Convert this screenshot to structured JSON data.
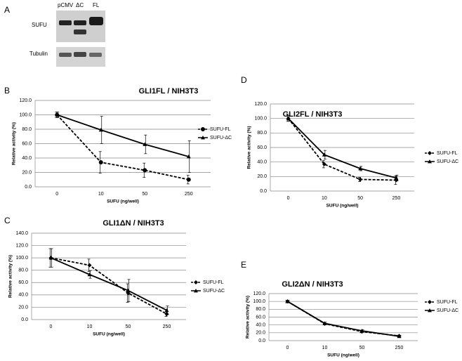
{
  "blot": {
    "panel": "A",
    "lanes": [
      "pCMV",
      "ΔC",
      "FL"
    ],
    "rows": [
      "SUFU",
      "Tubulin"
    ]
  },
  "chart_data": [
    {
      "type": "line",
      "panel": "B",
      "title": "GLI1FL / NIH3T3",
      "x_label": "SUFU (ng/well)",
      "y_label": "Relative activity (%)",
      "categories": [
        "0",
        "10",
        "50",
        "250"
      ],
      "ylim": [
        0,
        120
      ],
      "yticks": [
        {
          "value": 0,
          "label": "0.0"
        },
        {
          "value": 20,
          "label": "20.0"
        },
        {
          "value": 40,
          "label": "40.0"
        },
        {
          "value": 60,
          "label": "60.0"
        },
        {
          "value": 80,
          "label": "80.0"
        },
        {
          "value": 100,
          "label": "100.0"
        },
        {
          "value": 120,
          "label": "120.0"
        }
      ],
      "grid": true,
      "legend": "right",
      "series": [
        {
          "name": "SUFU-FL",
          "color": "#000000",
          "dash": true,
          "marker": "circle",
          "values": [
            100,
            34,
            23,
            10
          ],
          "errors": [
            4,
            15,
            10,
            6
          ]
        },
        {
          "name": "SUFU-ΔC",
          "color": "#000000",
          "dash": false,
          "marker": "triangle",
          "values": [
            100,
            79,
            59,
            42
          ],
          "errors": [
            4,
            19,
            13,
            22
          ]
        }
      ]
    },
    {
      "type": "line",
      "panel": "D",
      "title": "GLI2FL / NIH3T3",
      "x_label": "SUFU (ng/well)",
      "y_label": "Relative activity (%)",
      "categories": [
        "0",
        "10",
        "50",
        "250"
      ],
      "ylim": [
        0,
        120
      ],
      "yticks": [
        {
          "value": 0,
          "label": "0.0"
        },
        {
          "value": 20,
          "label": "20.0"
        },
        {
          "value": 40,
          "label": "40.0"
        },
        {
          "value": 60,
          "label": "60.0"
        },
        {
          "value": 80,
          "label": "80.0"
        },
        {
          "value": 100,
          "label": "100.0"
        },
        {
          "value": 120,
          "label": "120.0"
        }
      ],
      "grid": true,
      "legend": "right",
      "series": [
        {
          "name": "SUFU-FL",
          "color": "#000000",
          "dash": true,
          "marker": "diamond",
          "values": [
            100,
            37,
            16,
            15
          ],
          "errors": [
            4,
            5,
            3,
            6
          ]
        },
        {
          "name": "SUFU-ΔC",
          "color": "#000000",
          "dash": false,
          "marker": "triangle",
          "values": [
            100,
            50,
            31,
            18
          ],
          "errors": [
            4,
            6,
            3,
            4
          ]
        }
      ]
    },
    {
      "type": "line",
      "panel": "C",
      "title": "GLI1ΔN / NIH3T3",
      "x_label": "SUFU (ng/well)",
      "y_label": "Relative activity (%)",
      "categories": [
        "0",
        "10",
        "50",
        "250"
      ],
      "ylim": [
        0,
        140
      ],
      "yticks": [
        {
          "value": 0,
          "label": "0.0"
        },
        {
          "value": 20,
          "label": "20.0"
        },
        {
          "value": 40,
          "label": "40.0"
        },
        {
          "value": 60,
          "label": "60.0"
        },
        {
          "value": 80,
          "label": "80.0"
        },
        {
          "value": 100,
          "label": "100.0"
        },
        {
          "value": 120,
          "label": "120.0"
        },
        {
          "value": 140,
          "label": "140.0"
        }
      ],
      "grid": true,
      "legend": "right",
      "series": [
        {
          "name": "SUFU-FL",
          "color": "#000000",
          "dash": true,
          "marker": "diamond",
          "values": [
            100,
            88,
            43,
            9
          ],
          "errors": [
            15,
            10,
            15,
            4
          ]
        },
        {
          "name": "SUFU-ΔC",
          "color": "#000000",
          "dash": false,
          "marker": "triangle",
          "values": [
            100,
            73,
            47,
            15
          ],
          "errors": [
            15,
            6,
            18,
            7
          ]
        }
      ]
    },
    {
      "type": "line",
      "panel": "E",
      "title": "GLI2ΔN / NIH3T3",
      "x_label": "SUFU (ng/well)",
      "y_label": "Relative activity (%)",
      "categories": [
        "0",
        "10",
        "50",
        "250"
      ],
      "ylim": [
        0,
        120
      ],
      "yticks": [
        {
          "value": 0,
          "label": "0.0"
        },
        {
          "value": 20,
          "label": "20.0"
        },
        {
          "value": 40,
          "label": "40.0"
        },
        {
          "value": 60,
          "label": "60.0"
        },
        {
          "value": 80,
          "label": "80.0"
        },
        {
          "value": 100,
          "label": "100.0"
        },
        {
          "value": 120,
          "label": "120.0"
        }
      ],
      "grid": true,
      "legend": "right",
      "series": [
        {
          "name": "SUFU-FL",
          "color": "#000000",
          "dash": true,
          "marker": "diamond",
          "values": [
            100,
            43,
            23,
            12
          ],
          "errors": [
            3,
            3,
            3,
            2
          ]
        },
        {
          "name": "SUFU-ΔC",
          "color": "#000000",
          "dash": false,
          "marker": "triangle",
          "values": [
            100,
            44,
            25,
            11
          ],
          "errors": [
            3,
            3,
            3,
            2
          ]
        }
      ]
    }
  ]
}
